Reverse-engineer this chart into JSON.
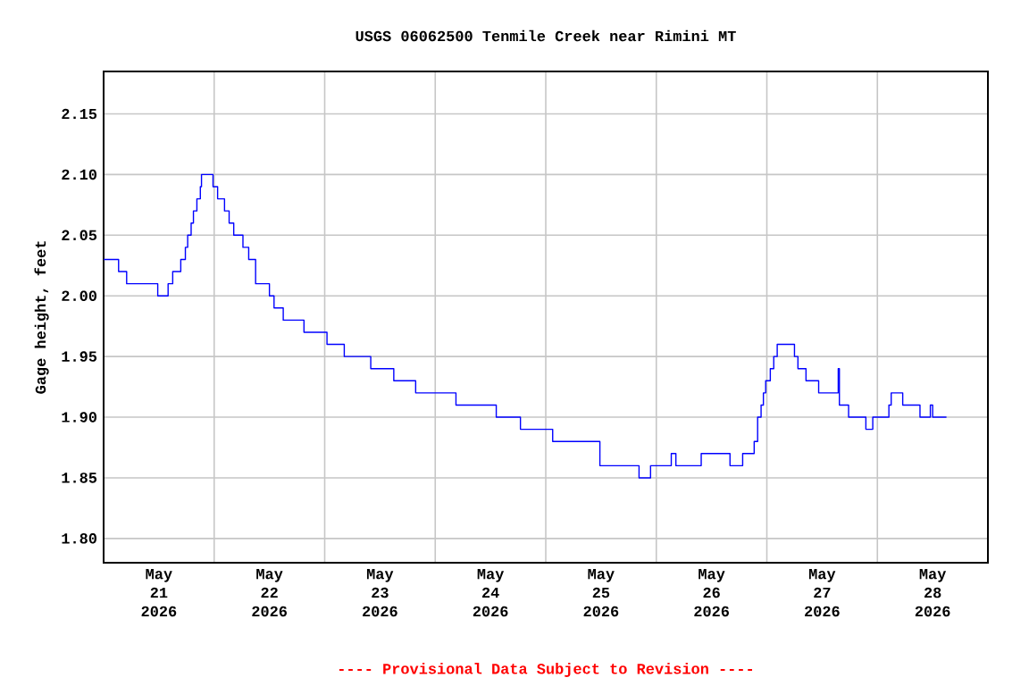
{
  "chart_data": {
    "type": "step",
    "title": "USGS 06062500 Tenmile Creek near Rimini MT",
    "ylabel": "Gage height, feet",
    "annotations": [
      "---- Provisional Data Subject to Revision ----"
    ],
    "color": "#0000ff",
    "grid": true,
    "xlim": [
      "2026-05-21T00:00",
      "2026-05-29T00:00"
    ],
    "ylim": [
      1.78,
      2.185
    ],
    "yticks": [
      {
        "value": 1.8,
        "label": "1.80"
      },
      {
        "value": 1.85,
        "label": "1.85"
      },
      {
        "value": 1.9,
        "label": "1.90"
      },
      {
        "value": 1.95,
        "label": "1.95"
      },
      {
        "value": 2.0,
        "label": "2.00"
      },
      {
        "value": 2.05,
        "label": "2.05"
      },
      {
        "value": 2.1,
        "label": "2.10"
      },
      {
        "value": 2.15,
        "label": "2.15"
      }
    ],
    "xticks": [
      {
        "value": "2026-05-21T12:00",
        "label": "May 21 2026"
      },
      {
        "value": "2026-05-22T00:00",
        "label": null
      },
      {
        "value": "2026-05-22T12:00",
        "label": "May 22 2026"
      },
      {
        "value": "2026-05-23T00:00",
        "label": null
      },
      {
        "value": "2026-05-23T12:00",
        "label": "May 23 2026"
      },
      {
        "value": "2026-05-24T00:00",
        "label": null
      },
      {
        "value": "2026-05-24T12:00",
        "label": "May 24 2026"
      },
      {
        "value": "2026-05-25T00:00",
        "label": null
      },
      {
        "value": "2026-05-25T12:00",
        "label": "May 25 2026"
      },
      {
        "value": "2026-05-26T00:00",
        "label": null
      },
      {
        "value": "2026-05-26T12:00",
        "label": "May 26 2026"
      },
      {
        "value": "2026-05-27T00:00",
        "label": null
      },
      {
        "value": "2026-05-27T12:00",
        "label": "May 27 2026"
      },
      {
        "value": "2026-05-28T00:00",
        "label": null
      },
      {
        "value": "2026-05-28T12:00",
        "label": "May 28 2026"
      }
    ],
    "x": [
      "2026-05-21T00:00",
      "2026-05-21T03:15",
      "2026-05-21T05:00",
      "2026-05-21T11:45",
      "2026-05-21T14:00",
      "2026-05-21T15:00",
      "2026-05-21T16:45",
      "2026-05-21T17:45",
      "2026-05-21T18:15",
      "2026-05-21T19:00",
      "2026-05-21T19:30",
      "2026-05-21T20:15",
      "2026-05-21T21:00",
      "2026-05-21T21:15",
      "2026-05-21T23:45",
      "2026-05-22T00:45",
      "2026-05-22T02:15",
      "2026-05-22T03:15",
      "2026-05-22T04:15",
      "2026-05-22T06:15",
      "2026-05-22T07:30",
      "2026-05-22T09:00",
      "2026-05-22T12:00",
      "2026-05-22T13:00",
      "2026-05-22T15:00",
      "2026-05-22T19:30",
      "2026-05-23T00:30",
      "2026-05-23T04:15",
      "2026-05-23T10:00",
      "2026-05-23T15:00",
      "2026-05-23T19:45",
      "2026-05-24T04:30",
      "2026-05-24T13:15",
      "2026-05-24T18:30",
      "2026-05-25T01:30",
      "2026-05-25T11:45",
      "2026-05-25T20:15",
      "2026-05-25T22:45",
      "2026-05-26T03:15",
      "2026-05-26T04:15",
      "2026-05-26T09:45",
      "2026-05-26T16:00",
      "2026-05-26T18:45",
      "2026-05-26T21:15",
      "2026-05-26T22:00",
      "2026-05-26T22:45",
      "2026-05-26T23:15",
      "2026-05-26T23:45",
      "2026-05-27T00:45",
      "2026-05-27T01:30",
      "2026-05-27T02:15",
      "2026-05-27T06:00",
      "2026-05-27T06:45",
      "2026-05-27T08:30",
      "2026-05-27T11:15",
      "2026-05-27T15:30",
      "2026-05-27T15:45",
      "2026-05-27T17:45",
      "2026-05-27T21:30",
      "2026-05-27T23:00",
      "2026-05-28T02:30",
      "2026-05-28T03:00",
      "2026-05-28T05:30",
      "2026-05-28T09:15",
      "2026-05-28T11:30",
      "2026-05-28T12:00",
      "2026-05-28T15:00"
    ],
    "values": [
      2.03,
      2.02,
      2.01,
      2.0,
      2.01,
      2.02,
      2.03,
      2.04,
      2.05,
      2.06,
      2.07,
      2.08,
      2.09,
      2.1,
      2.09,
      2.08,
      2.07,
      2.06,
      2.05,
      2.04,
      2.03,
      2.01,
      2.0,
      1.99,
      1.98,
      1.97,
      1.96,
      1.95,
      1.94,
      1.93,
      1.92,
      1.91,
      1.9,
      1.89,
      1.88,
      1.86,
      1.85,
      1.86,
      1.87,
      1.86,
      1.87,
      1.86,
      1.87,
      1.88,
      1.9,
      1.91,
      1.92,
      1.93,
      1.94,
      1.95,
      1.96,
      1.95,
      1.94,
      1.93,
      1.92,
      1.94,
      1.91,
      1.9,
      1.89,
      1.9,
      1.91,
      1.92,
      1.91,
      1.9,
      1.91,
      1.9,
      1.9
    ]
  }
}
